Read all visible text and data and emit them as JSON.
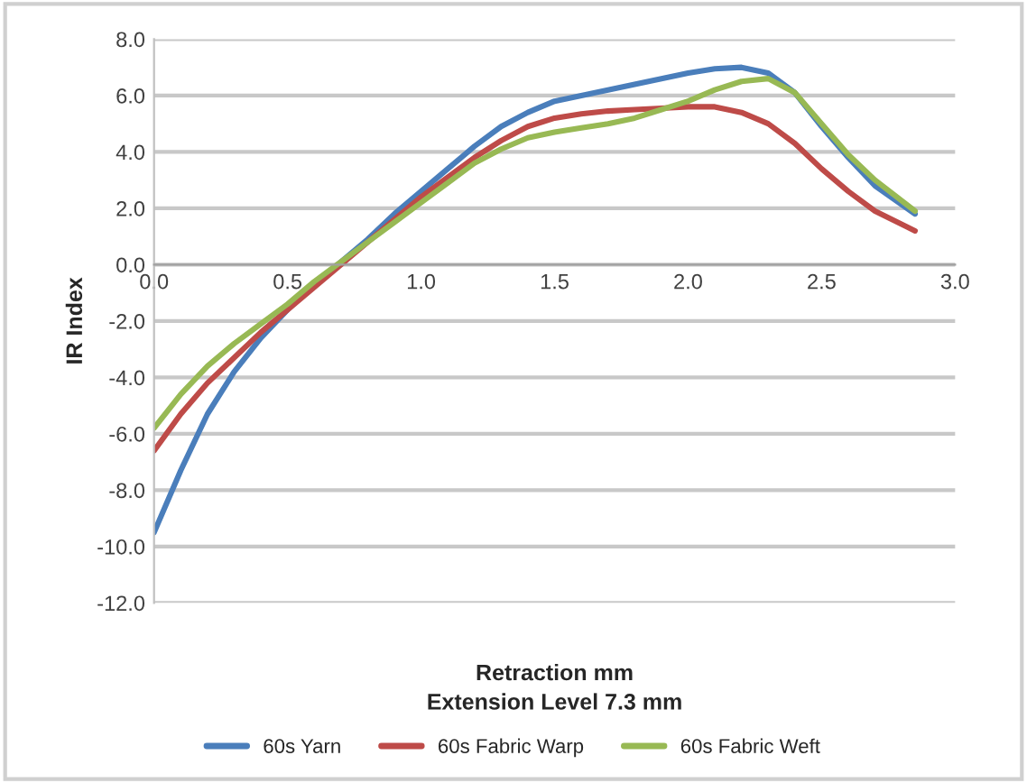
{
  "chart_data": {
    "type": "line",
    "xlabel": "Retraction mm\nExtension Level 7.3 mm",
    "ylabel": "IR Index",
    "x": [
      0,
      0.1,
      0.2,
      0.3,
      0.4,
      0.5,
      0.6,
      0.7,
      0.8,
      0.9,
      1.0,
      1.1,
      1.2,
      1.3,
      1.4,
      1.5,
      1.6,
      1.7,
      1.8,
      1.9,
      2.0,
      2.1,
      2.2,
      2.3,
      2.4,
      2.5,
      2.6,
      2.7,
      2.85
    ],
    "series": [
      {
        "name": "60s Yarn",
        "color": "#4a7ebb",
        "values": [
          -9.5,
          -7.3,
          -5.3,
          -3.8,
          -2.6,
          -1.6,
          -0.7,
          0.1,
          0.9,
          1.8,
          2.6,
          3.4,
          4.2,
          4.9,
          5.4,
          5.8,
          6.0,
          6.2,
          6.4,
          6.6,
          6.8,
          6.95,
          7.0,
          6.8,
          6.1,
          4.9,
          3.8,
          2.8,
          1.8
        ]
      },
      {
        "name": "60s Fabric Warp",
        "color": "#be4b48",
        "values": [
          -6.6,
          -5.3,
          -4.2,
          -3.3,
          -2.4,
          -1.6,
          -0.8,
          0.0,
          0.8,
          1.6,
          2.4,
          3.1,
          3.8,
          4.4,
          4.9,
          5.2,
          5.35,
          5.45,
          5.5,
          5.55,
          5.6,
          5.6,
          5.4,
          5.0,
          4.3,
          3.4,
          2.6,
          1.9,
          1.2
        ]
      },
      {
        "name": "60s Fabric Weft",
        "color": "#98b954",
        "values": [
          -5.8,
          -4.6,
          -3.6,
          -2.8,
          -2.1,
          -1.4,
          -0.6,
          0.1,
          0.8,
          1.5,
          2.2,
          2.9,
          3.6,
          4.1,
          4.5,
          4.7,
          4.85,
          5.0,
          5.2,
          5.5,
          5.8,
          6.2,
          6.5,
          6.6,
          6.1,
          5.0,
          3.9,
          3.0,
          1.9
        ]
      }
    ],
    "xlim": [
      0,
      3.0
    ],
    "xticks": [
      {
        "value": 0,
        "label": "0.0"
      },
      {
        "value": 0.5,
        "label": "0.5"
      },
      {
        "value": 1.0,
        "label": "1.0"
      },
      {
        "value": 1.5,
        "label": "1.5"
      },
      {
        "value": 2.0,
        "label": "2.0"
      },
      {
        "value": 2.5,
        "label": "2.5"
      },
      {
        "value": 3.0,
        "label": "3.0"
      }
    ],
    "ylim": [
      -12,
      8
    ],
    "yticks": [
      {
        "value": -12,
        "label": "-12.0"
      },
      {
        "value": -10,
        "label": "-10.0"
      },
      {
        "value": -8,
        "label": "-8.0"
      },
      {
        "value": -6,
        "label": "-6.0"
      },
      {
        "value": -4,
        "label": "-4.0"
      },
      {
        "value": -2,
        "label": "-2.0"
      },
      {
        "value": 0,
        "label": "0.0"
      },
      {
        "value": 2,
        "label": "2.0"
      },
      {
        "value": 4,
        "label": "4.0"
      },
      {
        "value": 6,
        "label": "6.0"
      },
      {
        "value": 8,
        "label": "8.0"
      }
    ],
    "grid": "y",
    "legend": "bottom",
    "marker": "none",
    "line_style": "solid"
  }
}
